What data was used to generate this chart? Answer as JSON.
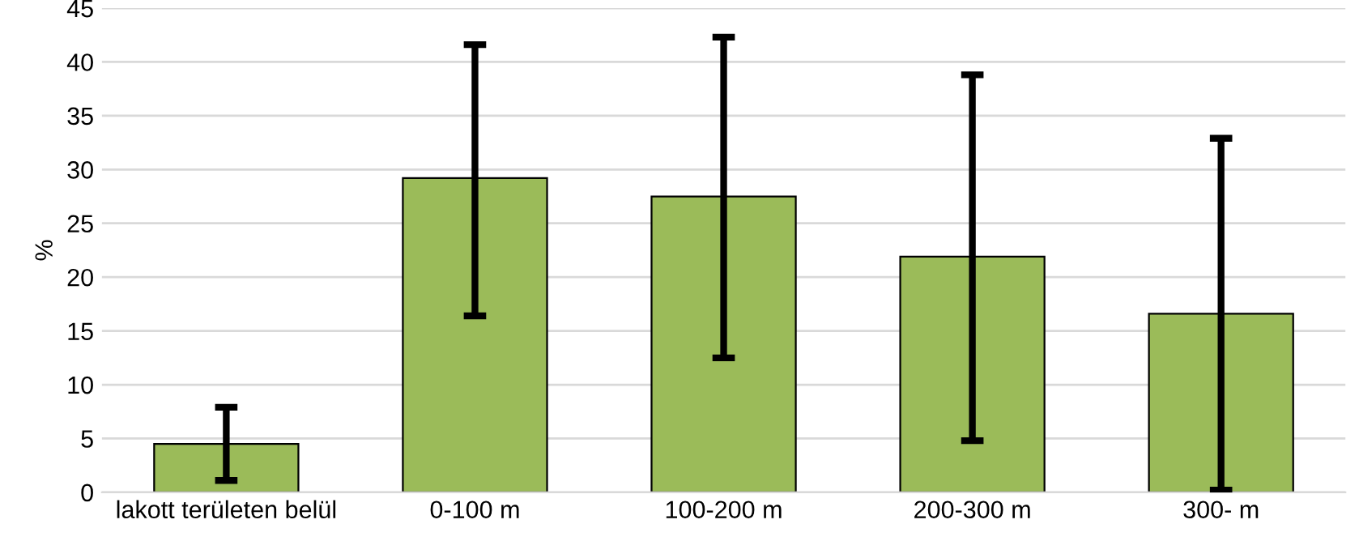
{
  "chart_data": {
    "type": "bar",
    "ylabel": "%",
    "categories": [
      "lakott területen belül",
      "0-100 m",
      "100-200 m",
      "200-300 m",
      "300- m"
    ],
    "values": [
      4.5,
      29.2,
      27.5,
      21.9,
      16.6
    ],
    "errors": [
      [
        1.1,
        7.9
      ],
      [
        16.4,
        41.6
      ],
      [
        12.5,
        42.3
      ],
      [
        4.8,
        38.8
      ],
      [
        0.2,
        32.9
      ]
    ],
    "color": "#9bbb59",
    "ylim": [
      0,
      45
    ],
    "yticks": [
      0,
      5,
      10,
      15,
      20,
      25,
      30,
      35,
      40,
      45
    ],
    "grid": "y",
    "legend": false
  }
}
